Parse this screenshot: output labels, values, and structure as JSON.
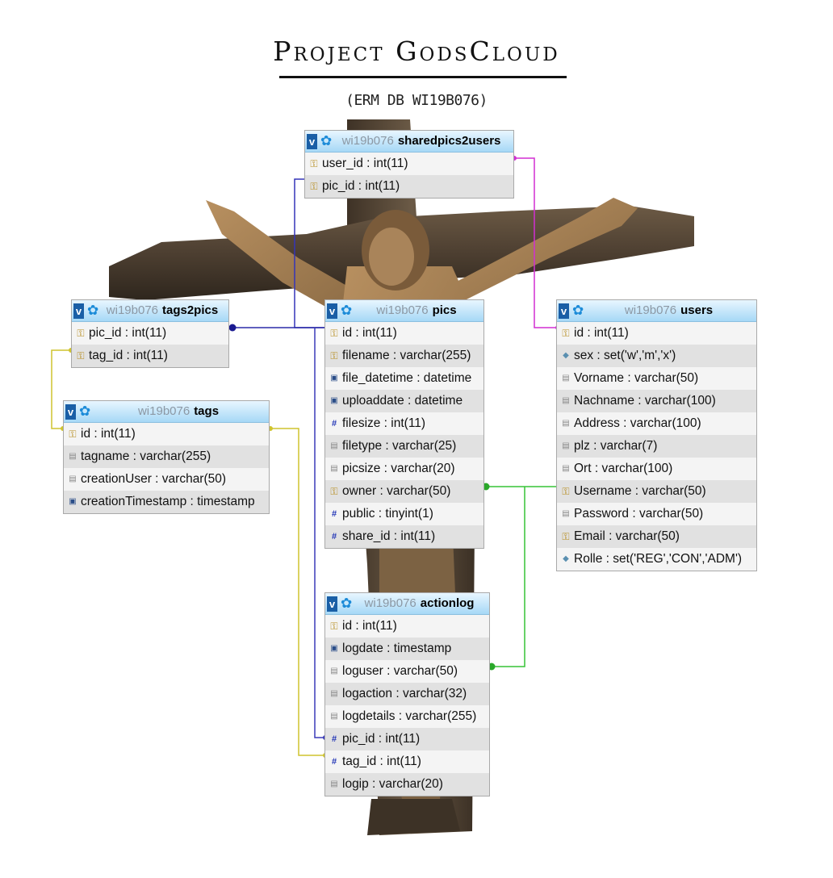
{
  "title": "Project GodsCloud",
  "subtitle": "(ERM DB WI19B076)",
  "icons": {
    "key": "key-icon",
    "hash": "hash-icon",
    "date": "calendar-icon",
    "text": "text-icon",
    "set": "diamond-icon",
    "header_toggle": "v",
    "header_gear": "gear-icon"
  },
  "tables": {
    "sharedpics2users": {
      "db": "wi19b076",
      "name": "sharedpics2users",
      "rows": [
        {
          "text": "user_id : int(11)",
          "icon": "key"
        },
        {
          "text": "pic_id : int(11)",
          "icon": "key"
        }
      ]
    },
    "tags2pics": {
      "db": "wi19b076",
      "name": "tags2pics",
      "rows": [
        {
          "text": "pic_id : int(11)",
          "icon": "key"
        },
        {
          "text": "tag_id : int(11)",
          "icon": "key"
        }
      ]
    },
    "tags": {
      "db": "wi19b076",
      "name": "tags",
      "rows": [
        {
          "text": "id : int(11)",
          "icon": "key"
        },
        {
          "text": "tagname : varchar(255)",
          "icon": "text"
        },
        {
          "text": "creationUser : varchar(50)",
          "icon": "text"
        },
        {
          "text": "creationTimestamp : timestamp",
          "icon": "date"
        }
      ]
    },
    "pics": {
      "db": "wi19b076",
      "name": "pics",
      "rows": [
        {
          "text": "id : int(11)",
          "icon": "key"
        },
        {
          "text": "filename : varchar(255)",
          "icon": "key"
        },
        {
          "text": "file_datetime : datetime",
          "icon": "date"
        },
        {
          "text": "uploaddate : datetime",
          "icon": "date"
        },
        {
          "text": "filesize : int(11)",
          "icon": "hash"
        },
        {
          "text": "filetype : varchar(25)",
          "icon": "text"
        },
        {
          "text": "picsize : varchar(20)",
          "icon": "text"
        },
        {
          "text": "owner : varchar(50)",
          "icon": "key"
        },
        {
          "text": "public : tinyint(1)",
          "icon": "hash"
        },
        {
          "text": "share_id : int(11)",
          "icon": "hash"
        }
      ]
    },
    "users": {
      "db": "wi19b076",
      "name": "users",
      "rows": [
        {
          "text": "id : int(11)",
          "icon": "key"
        },
        {
          "text": "sex : set('w','m','x')",
          "icon": "set"
        },
        {
          "text": "Vorname : varchar(50)",
          "icon": "text"
        },
        {
          "text": "Nachname : varchar(100)",
          "icon": "text"
        },
        {
          "text": "Address : varchar(100)",
          "icon": "text"
        },
        {
          "text": "plz : varchar(7)",
          "icon": "text"
        },
        {
          "text": "Ort : varchar(100)",
          "icon": "text"
        },
        {
          "text": "Username : varchar(50)",
          "icon": "key"
        },
        {
          "text": "Password : varchar(50)",
          "icon": "text"
        },
        {
          "text": "Email : varchar(50)",
          "icon": "key"
        },
        {
          "text": "Rolle : set('REG','CON','ADM')",
          "icon": "set"
        }
      ]
    },
    "actionlog": {
      "db": "wi19b076",
      "name": "actionlog",
      "rows": [
        {
          "text": "id : int(11)",
          "icon": "key"
        },
        {
          "text": "logdate : timestamp",
          "icon": "date"
        },
        {
          "text": "loguser : varchar(50)",
          "icon": "text"
        },
        {
          "text": "logaction : varchar(32)",
          "icon": "text"
        },
        {
          "text": "logdetails : varchar(255)",
          "icon": "text"
        },
        {
          "text": "pic_id : int(11)",
          "icon": "hash"
        },
        {
          "text": "tag_id : int(11)",
          "icon": "hash"
        },
        {
          "text": "logip : varchar(20)",
          "icon": "text"
        }
      ]
    }
  },
  "relations": [
    {
      "from": "sharedpics2users.user_id",
      "to": "users.id",
      "color": "#d22fd2"
    },
    {
      "from": "sharedpics2users.pic_id",
      "to": "pics.id",
      "color": "#3434b8"
    },
    {
      "from": "tags2pics.pic_id",
      "to": "pics.id",
      "color": "#2a2aa8"
    },
    {
      "from": "tags2pics.tag_id",
      "to": "tags.id",
      "color": "#cfc42e"
    },
    {
      "from": "actionlog.pic_id",
      "to": "pics.id",
      "color": "#3a3ab8"
    },
    {
      "from": "actionlog.tag_id",
      "to": "tags.id",
      "color": "#cfc42e"
    },
    {
      "from": "pics.owner",
      "to": "users.Username",
      "color": "#37c437"
    },
    {
      "from": "actionlog.loguser",
      "to": "users.Username",
      "color": "#37c437"
    }
  ]
}
